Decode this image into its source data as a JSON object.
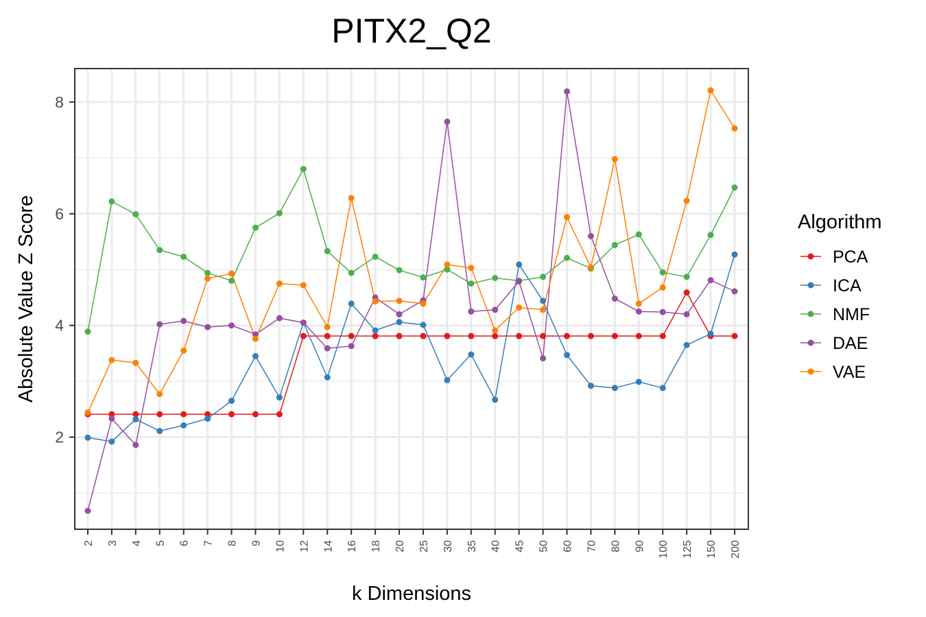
{
  "chart_data": {
    "type": "line",
    "title": "PITX2_Q2",
    "xlabel": "k Dimensions",
    "ylabel": "Absolute Value Z Score",
    "categories": [
      "2",
      "3",
      "4",
      "5",
      "6",
      "7",
      "8",
      "9",
      "10",
      "12",
      "14",
      "16",
      "18",
      "20",
      "25",
      "30",
      "35",
      "40",
      "45",
      "50",
      "60",
      "70",
      "80",
      "90",
      "100",
      "125",
      "150",
      "200"
    ],
    "ylim": [
      0.35,
      8.6
    ],
    "yticks": [
      2,
      4,
      6,
      8
    ],
    "ytick_labels": [
      "2",
      "4",
      "6",
      "8"
    ],
    "grid": true,
    "legend": {
      "title": "Algorithm",
      "position": "right"
    },
    "series": [
      {
        "name": "PCA",
        "color": "#e41a1c",
        "values": [
          2.41,
          2.41,
          2.41,
          2.41,
          2.41,
          2.41,
          2.41,
          2.41,
          2.41,
          3.81,
          3.81,
          3.81,
          3.81,
          3.81,
          3.81,
          3.81,
          3.81,
          3.81,
          3.81,
          3.81,
          3.81,
          3.81,
          3.81,
          3.81,
          3.81,
          4.59,
          3.81,
          3.81
        ]
      },
      {
        "name": "ICA",
        "color": "#377eb8",
        "values": [
          1.99,
          1.92,
          2.32,
          2.11,
          2.21,
          2.33,
          2.65,
          3.45,
          2.71,
          4.05,
          3.07,
          4.39,
          3.91,
          4.06,
          4.01,
          3.02,
          3.48,
          2.67,
          5.09,
          4.44,
          3.47,
          2.92,
          2.88,
          2.99,
          2.88,
          3.65,
          3.85,
          5.27
        ]
      },
      {
        "name": "NMF",
        "color": "#4daf4a",
        "values": [
          3.89,
          6.22,
          5.99,
          5.35,
          5.23,
          4.94,
          4.8,
          5.75,
          6.01,
          6.8,
          5.33,
          4.94,
          5.23,
          4.99,
          4.86,
          5.0,
          4.75,
          4.85,
          4.8,
          4.87,
          5.21,
          5.02,
          5.44,
          5.63,
          4.95,
          4.87,
          5.62,
          6.47
        ]
      },
      {
        "name": "DAE",
        "color": "#984ea3",
        "values": [
          0.68,
          2.33,
          1.86,
          4.02,
          4.08,
          3.97,
          4.0,
          3.84,
          4.13,
          4.05,
          3.59,
          3.63,
          4.5,
          4.2,
          4.45,
          7.65,
          4.25,
          4.28,
          4.79,
          3.41,
          8.19,
          5.6,
          4.48,
          4.25,
          4.24,
          4.2,
          4.81,
          4.61
        ]
      },
      {
        "name": "VAE",
        "color": "#ff7f00",
        "values": [
          2.44,
          3.38,
          3.33,
          2.77,
          3.55,
          4.84,
          4.93,
          3.76,
          4.75,
          4.72,
          3.97,
          6.28,
          4.43,
          4.44,
          4.39,
          5.09,
          5.03,
          3.91,
          4.32,
          4.28,
          5.94,
          5.04,
          6.98,
          4.39,
          4.68,
          6.23,
          8.21,
          7.53
        ]
      }
    ]
  }
}
